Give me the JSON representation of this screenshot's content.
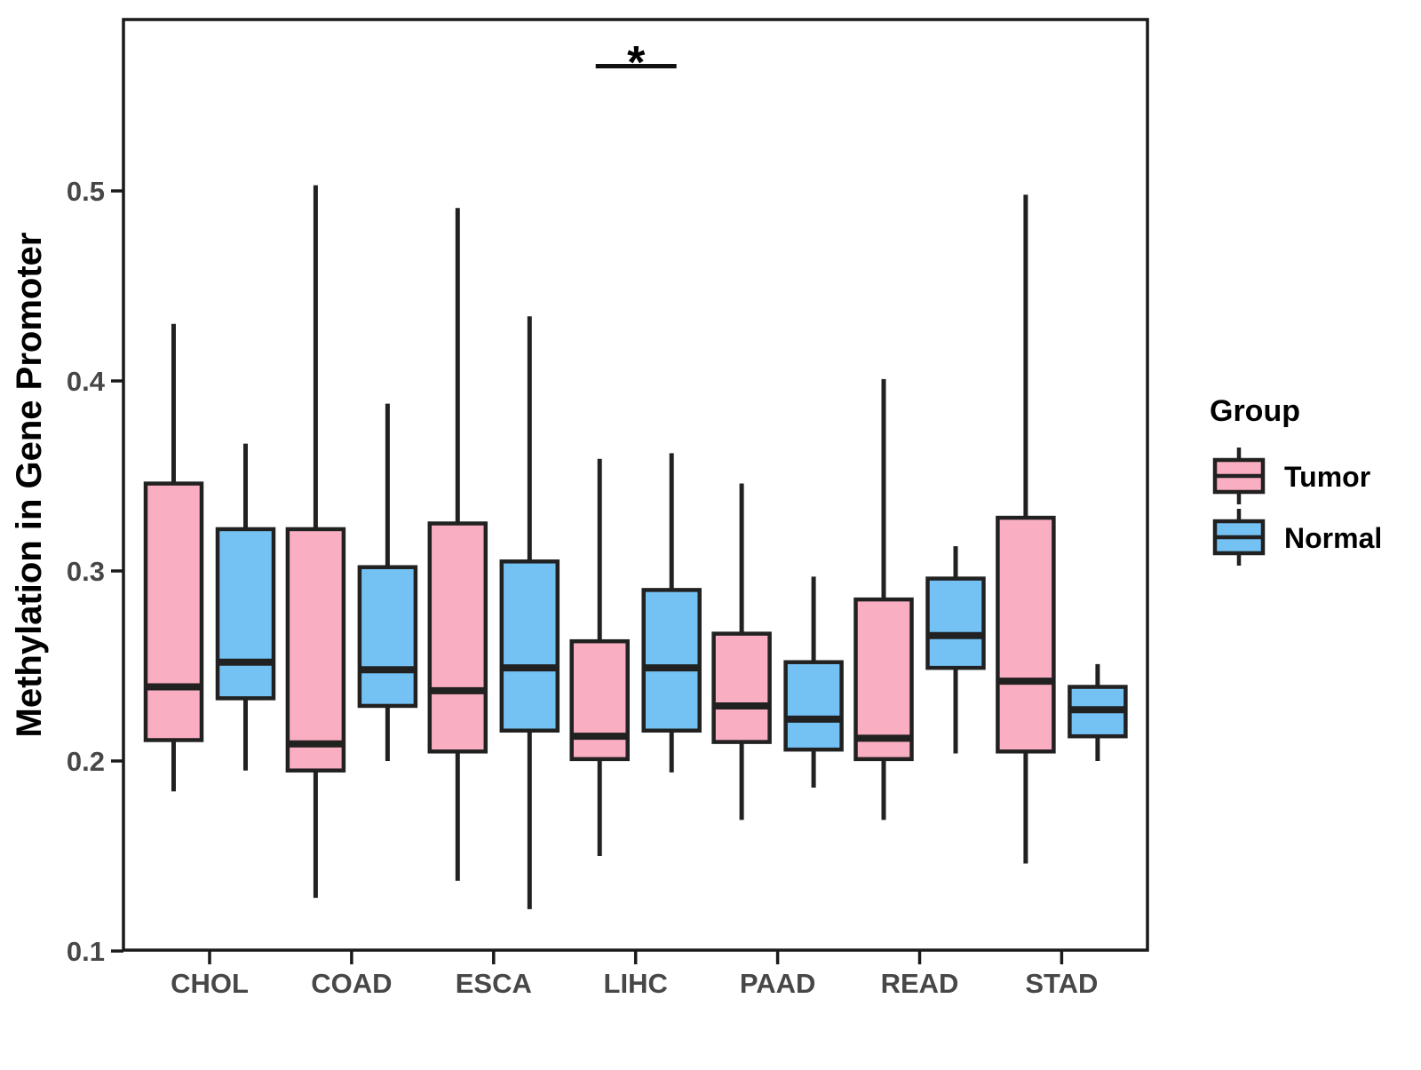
{
  "chart_data": {
    "type": "boxplot",
    "title": "",
    "xlabel": "",
    "ylabel": "Methylation in Gene Promoter",
    "categories": [
      "CHOL",
      "COAD",
      "ESCA",
      "LIHC",
      "PAAD",
      "READ",
      "STAD"
    ],
    "yticks": [
      0.1,
      0.2,
      0.3,
      0.4,
      0.5
    ],
    "ytick_labels": [
      "0.1",
      "0.2",
      "0.3",
      "0.4",
      "0.5"
    ],
    "ylim": [
      0.1,
      0.59
    ],
    "grid": false,
    "legend_title": "Group",
    "legend_position": "right",
    "series": [
      {
        "name": "Tumor",
        "color": "#FAAEC1",
        "boxes": [
          {
            "low": 0.184,
            "q1": 0.211,
            "median": 0.239,
            "q3": 0.346,
            "high": 0.43
          },
          {
            "low": 0.128,
            "q1": 0.195,
            "median": 0.209,
            "q3": 0.322,
            "high": 0.503
          },
          {
            "low": 0.137,
            "q1": 0.205,
            "median": 0.237,
            "q3": 0.325,
            "high": 0.491
          },
          {
            "low": 0.15,
            "q1": 0.201,
            "median": 0.213,
            "q3": 0.263,
            "high": 0.359
          },
          {
            "low": 0.169,
            "q1": 0.21,
            "median": 0.229,
            "q3": 0.267,
            "high": 0.346
          },
          {
            "low": 0.169,
            "q1": 0.201,
            "median": 0.212,
            "q3": 0.285,
            "high": 0.401
          },
          {
            "low": 0.146,
            "q1": 0.205,
            "median": 0.242,
            "q3": 0.328,
            "high": 0.498
          }
        ]
      },
      {
        "name": "Normal",
        "color": "#74C1F4",
        "boxes": [
          {
            "low": 0.195,
            "q1": 0.233,
            "median": 0.252,
            "q3": 0.322,
            "high": 0.367
          },
          {
            "low": 0.2,
            "q1": 0.229,
            "median": 0.248,
            "q3": 0.302,
            "high": 0.388
          },
          {
            "low": 0.122,
            "q1": 0.216,
            "median": 0.249,
            "q3": 0.305,
            "high": 0.434
          },
          {
            "low": 0.194,
            "q1": 0.216,
            "median": 0.249,
            "q3": 0.29,
            "high": 0.362
          },
          {
            "low": 0.186,
            "q1": 0.206,
            "median": 0.222,
            "q3": 0.252,
            "high": 0.297
          },
          {
            "low": 0.204,
            "q1": 0.249,
            "median": 0.266,
            "q3": 0.296,
            "high": 0.313
          },
          {
            "low": 0.2,
            "q1": 0.213,
            "median": 0.227,
            "q3": 0.239,
            "high": 0.251
          }
        ]
      }
    ],
    "annotations": [
      {
        "type": "significance",
        "category": "LIHC",
        "label": "*"
      }
    ],
    "colors": {
      "box_border": "#212121",
      "whisker": "#212121",
      "axis_line": "#1A1A1A",
      "axis_text": "#474747",
      "background": "#FFFFFF"
    }
  }
}
